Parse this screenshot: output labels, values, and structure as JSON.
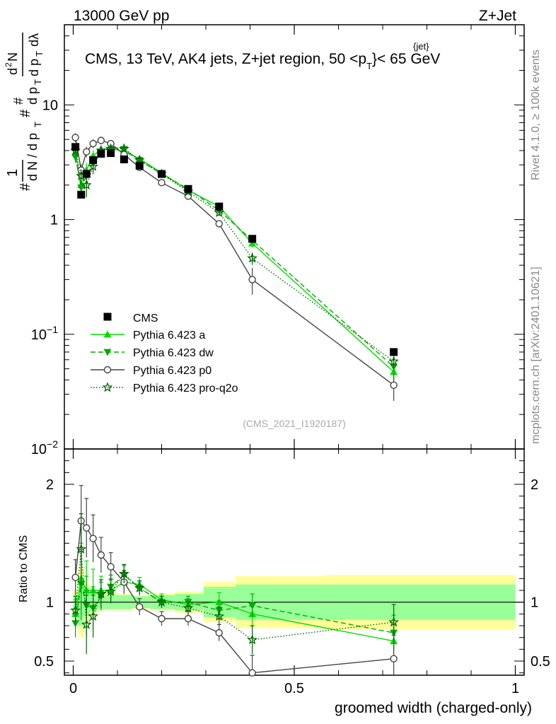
{
  "header": {
    "left": "13000 GeV pp",
    "right": "Z+Jet"
  },
  "side": {
    "rivet": "Rivet 4.1.0, ≥ 100k events",
    "mcplots": "mcplots.cern.ch [arXiv:2401.10621]"
  },
  "chart_data": {
    "type": "scatter",
    "title": "CMS, 13 TeV, AK4 jets, Z+jet region, 50 <p_T^{jet}< 65 GeV",
    "title_parts": {
      "main": "CMS, 13 TeV, AK4 jets, Z+jet region, 50 <p",
      "sub": "T",
      "sup": "{jet}",
      "end": "}< 65 GeV"
    },
    "analysis_id": "(CMS_2021_I1920187)",
    "xlabel": "groomed width (charged-only)",
    "ylabel_main": "1/N dN/dp_T d²N/dp_T dλ",
    "ylabel_ratio": "Ratio to CMS",
    "xlim": [
      -0.02,
      1.02
    ],
    "ylim_main": [
      0.01,
      50
    ],
    "ylim_ratio": [
      0.38,
      2.3
    ],
    "x_ticks": [
      {
        "v": 0,
        "label": "0"
      },
      {
        "v": 0.5,
        "label": "0.5"
      },
      {
        "v": 1,
        "label": "1"
      }
    ],
    "y_ticks_main": [
      {
        "v": 0.01,
        "base": "10",
        "exp": "−2"
      },
      {
        "v": 0.1,
        "base": "10",
        "exp": "−1"
      },
      {
        "v": 1,
        "base": "1",
        "exp": ""
      },
      {
        "v": 10,
        "base": "10",
        "exp": ""
      }
    ],
    "y_ticks_ratio": [
      {
        "v": 0.5,
        "label": "0.5"
      },
      {
        "v": 1,
        "label": "1"
      },
      {
        "v": 2,
        "label": "2"
      }
    ],
    "x": [
      0.005,
      0.018,
      0.03,
      0.045,
      0.063,
      0.085,
      0.115,
      0.15,
      0.2,
      0.26,
      0.33,
      0.405,
      0.725
    ],
    "data": {
      "name": "CMS",
      "values": [
        4.3,
        1.65,
        2.5,
        3.3,
        3.75,
        3.8,
        3.35,
        2.95,
        2.5,
        1.85,
        1.3,
        0.68,
        0.07
      ],
      "band_inner": [
        0.06,
        0.2,
        0.12,
        0.08,
        0.06,
        0.06,
        0.06,
        0.05,
        0.06,
        0.07,
        0.13,
        0.15,
        0.15
      ],
      "band_outer": [
        0.1,
        0.3,
        0.16,
        0.1,
        0.07,
        0.07,
        0.07,
        0.06,
        0.07,
        0.09,
        0.17,
        0.22,
        0.23
      ]
    },
    "series": [
      {
        "name": "Pythia 6.423 a",
        "color": "#00dd00",
        "dash": "",
        "marker": "triangle-up",
        "values": [
          3.8,
          2.0,
          2.7,
          3.6,
          4.1,
          4.2,
          3.9,
          3.4,
          2.55,
          1.8,
          1.3,
          0.62,
          0.047
        ],
        "ratio": [
          0.9,
          1.2,
          1.1,
          1.1,
          1.1,
          1.1,
          1.17,
          1.15,
          1.02,
          0.98,
          1.0,
          0.9,
          0.67
        ],
        "ratio_err": [
          0.12,
          0.3,
          0.25,
          0.18,
          0.12,
          0.1,
          0.08,
          0.06,
          0.05,
          0.05,
          0.08,
          0.1,
          0.15
        ]
      },
      {
        "name": "Pythia 6.423 dw",
        "color": "#00aa00",
        "dash": "7,4",
        "marker": "triangle-down",
        "values": [
          3.5,
          1.9,
          2.4,
          3.1,
          3.9,
          4.3,
          4.1,
          3.3,
          2.5,
          1.85,
          1.2,
          0.66,
          0.052
        ],
        "ratio": [
          0.82,
          1.15,
          0.97,
          0.95,
          1.05,
          1.13,
          1.23,
          1.12,
          1.0,
          1.0,
          0.93,
          0.97,
          0.74
        ],
        "ratio_err": [
          0.12,
          0.3,
          0.25,
          0.18,
          0.12,
          0.1,
          0.08,
          0.06,
          0.05,
          0.05,
          0.08,
          0.1,
          0.15
        ]
      },
      {
        "name": "Pythia 6.423 p0",
        "color": "#444444",
        "dash": "",
        "marker": "circle-open",
        "values": [
          5.2,
          2.7,
          3.9,
          4.6,
          4.9,
          4.6,
          3.7,
          2.85,
          2.1,
          1.6,
          0.92,
          0.3,
          0.036
        ],
        "ratio": [
          1.21,
          1.69,
          1.63,
          1.54,
          1.4,
          1.3,
          1.17,
          0.96,
          0.86,
          0.86,
          0.74,
          0.4,
          0.52
        ],
        "ratio_err": [
          0.15,
          0.3,
          0.25,
          0.2,
          0.15,
          0.12,
          0.1,
          0.07,
          0.06,
          0.06,
          0.07,
          0.15,
          0.2
        ]
      },
      {
        "name": "Pythia 6.423 pro-q2o",
        "color": "#006600",
        "dash": "1.5,2.5",
        "marker": "star-open",
        "values": [
          4.0,
          2.4,
          2.0,
          2.9,
          4.0,
          4.15,
          4.15,
          3.3,
          2.5,
          1.75,
          1.15,
          0.46,
          0.058
        ],
        "ratio": [
          0.93,
          1.45,
          0.81,
          0.88,
          1.07,
          1.09,
          1.24,
          1.12,
          1.0,
          0.95,
          0.88,
          0.68,
          0.83
        ],
        "ratio_err": [
          0.12,
          0.3,
          0.25,
          0.18,
          0.12,
          0.1,
          0.08,
          0.06,
          0.05,
          0.05,
          0.08,
          0.12,
          0.15
        ]
      }
    ]
  }
}
